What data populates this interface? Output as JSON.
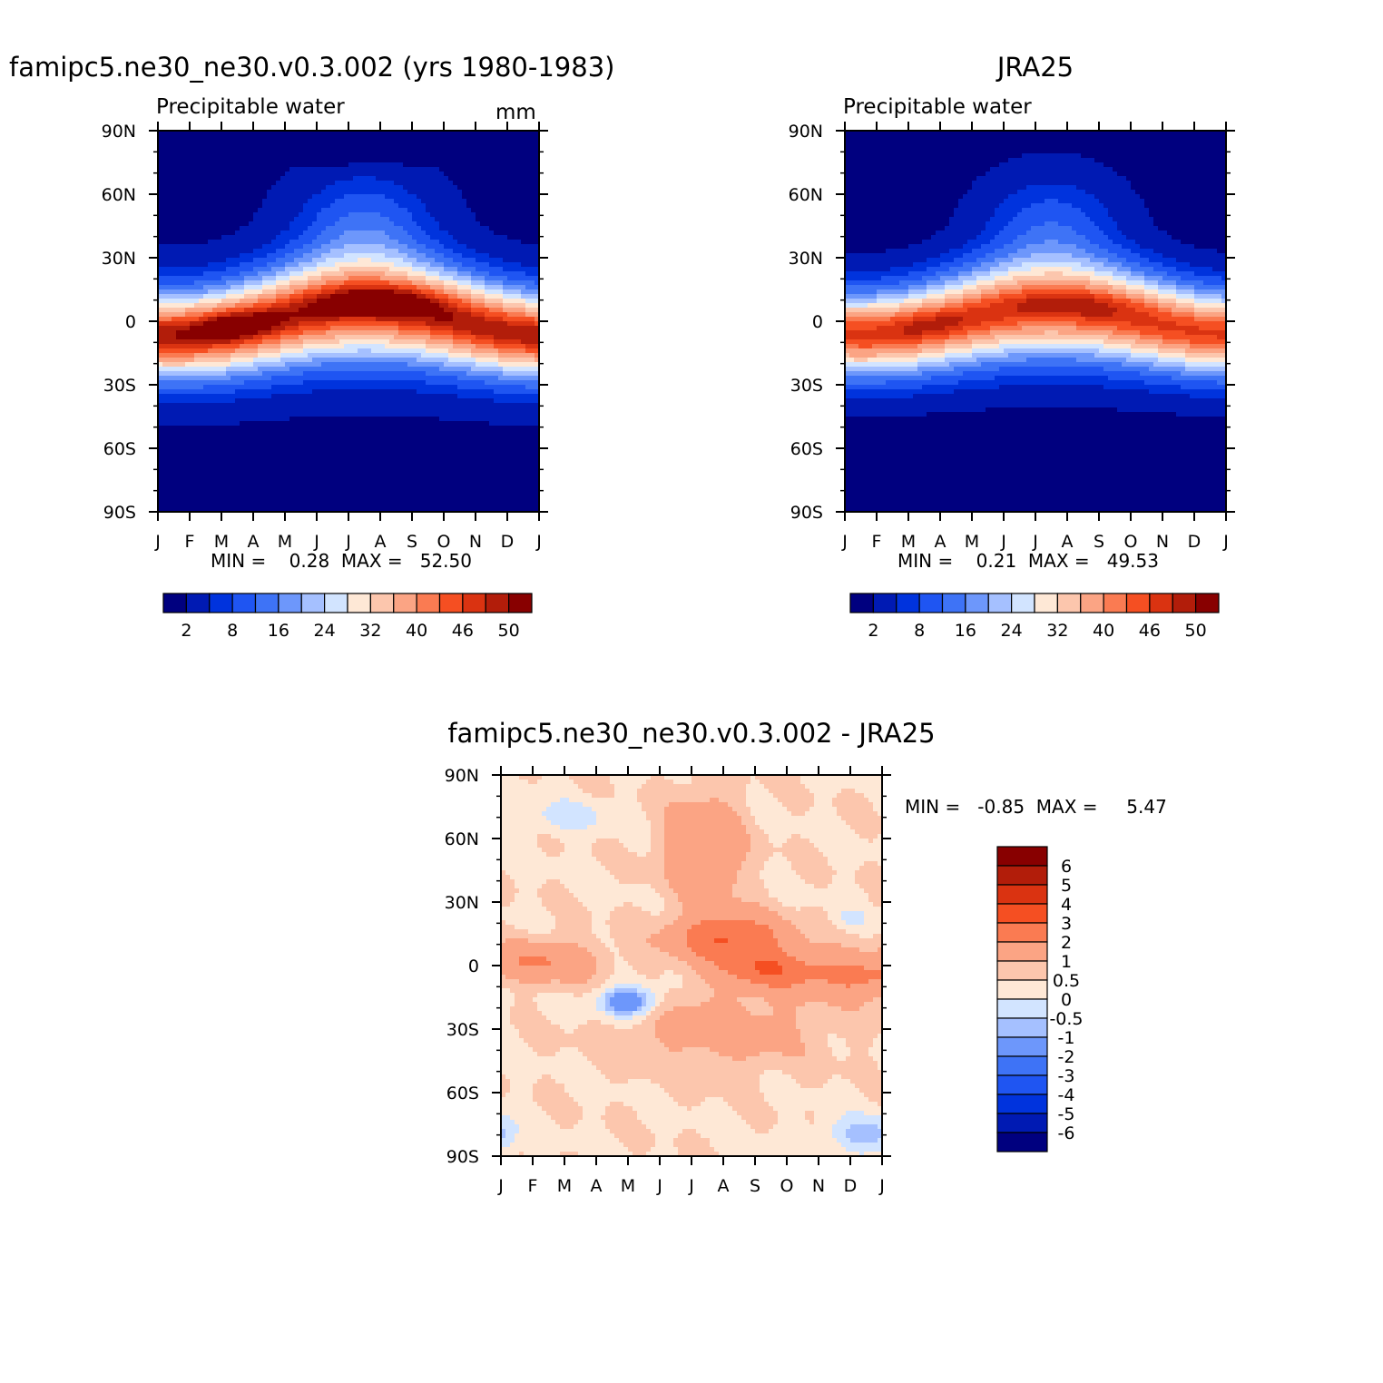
{
  "colors": {
    "abs_scale": [
      "#00007f",
      "#001ab3",
      "#0033dd",
      "#1f55f2",
      "#3e73f6",
      "#6d97fb",
      "#a5c0ff",
      "#d2e4ff",
      "#fee8d6",
      "#fcc6ad",
      "#fba484",
      "#fa7b52",
      "#f54f22",
      "#da3311",
      "#b21d0a",
      "#880000"
    ],
    "diff_scale": [
      "#00007f",
      "#001ab3",
      "#0033dd",
      "#1f55f2",
      "#3e73f6",
      "#6d97fb",
      "#a5c0ff",
      "#d2e4ff",
      "#fee8d6",
      "#fcc6ad",
      "#fba484",
      "#fa7b52",
      "#f54f22",
      "#da3311",
      "#b21d0a",
      "#880000"
    ]
  },
  "panels": {
    "model": {
      "title": "famipc5.ne30_ne30.v0.3.002 (yrs 1980-1983)",
      "variable": "Precipitable water",
      "units": "mm",
      "stats": "MIN =    0.28  MAX =   52.50"
    },
    "obs": {
      "title": "JRA25",
      "variable": "Precipitable water",
      "stats": "MIN =    0.21  MAX =   49.53"
    },
    "diff": {
      "title": "famipc5.ne30_ne30.v0.3.002 - JRA25",
      "stats": "MIN =   -0.85  MAX =     5.47"
    }
  },
  "chart_data": [
    {
      "type": "heatmap",
      "title": "famipc5.ne30_ne30.v0.3.002 (yrs 1980-1983)",
      "subtitle": "Precipitable water",
      "units": "mm",
      "x": [
        "J",
        "F",
        "M",
        "A",
        "M",
        "J",
        "J",
        "A",
        "S",
        "O",
        "N",
        "D",
        "J"
      ],
      "y_ticks": [
        "90N",
        "60N",
        "30N",
        "0",
        "30S",
        "60S",
        "90S"
      ],
      "levels": [
        2,
        5,
        8,
        12,
        16,
        20,
        24,
        28,
        32,
        36,
        40,
        43,
        46,
        48,
        50
      ],
      "colorbar_labels": [
        "2",
        "8",
        "16",
        "24",
        "32",
        "40",
        "46",
        "50"
      ],
      "min": 0.28,
      "max": 52.5
    },
    {
      "type": "heatmap",
      "title": "JRA25",
      "subtitle": "Precipitable water",
      "x": [
        "J",
        "F",
        "M",
        "A",
        "M",
        "J",
        "J",
        "A",
        "S",
        "O",
        "N",
        "D",
        "J"
      ],
      "y_ticks": [
        "90N",
        "60N",
        "30N",
        "0",
        "30S",
        "60S",
        "90S"
      ],
      "levels": [
        2,
        5,
        8,
        12,
        16,
        20,
        24,
        28,
        32,
        36,
        40,
        43,
        46,
        48,
        50
      ],
      "colorbar_labels": [
        "2",
        "8",
        "16",
        "24",
        "32",
        "40",
        "46",
        "50"
      ],
      "min": 0.21,
      "max": 49.53
    },
    {
      "type": "heatmap",
      "title": "famipc5.ne30_ne30.v0.3.002 - JRA25",
      "x": [
        "J",
        "F",
        "M",
        "A",
        "M",
        "J",
        "J",
        "A",
        "S",
        "O",
        "N",
        "D",
        "J"
      ],
      "y_ticks": [
        "90N",
        "60N",
        "30N",
        "0",
        "30S",
        "60S",
        "90S"
      ],
      "levels": [
        -6,
        -5,
        -4,
        -3,
        -2,
        -1,
        -0.5,
        0,
        0.5,
        1,
        2,
        3,
        4,
        5,
        6
      ],
      "colorbar_labels": [
        "6",
        "5",
        "4",
        "3",
        "2",
        "1",
        "0.5",
        "0",
        "-0.5",
        "-1",
        "-2",
        "-3",
        "-4",
        "-5",
        "-6"
      ],
      "min": -0.85,
      "max": 5.47
    }
  ]
}
